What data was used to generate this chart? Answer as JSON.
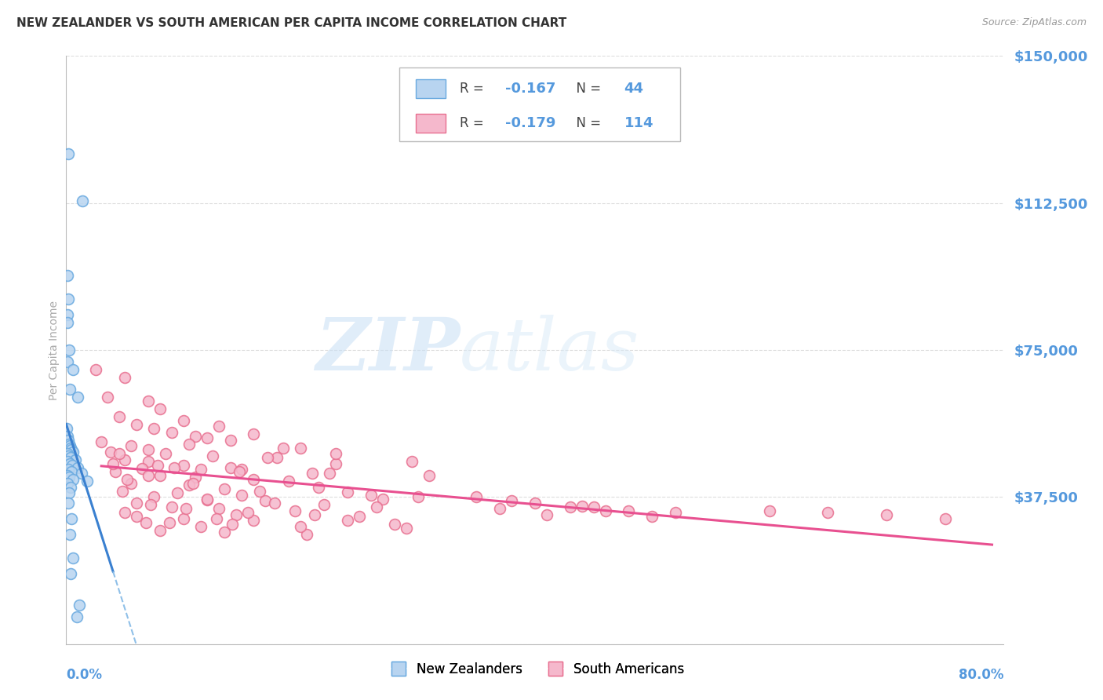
{
  "title": "NEW ZEALANDER VS SOUTH AMERICAN PER CAPITA INCOME CORRELATION CHART",
  "source": "Source: ZipAtlas.com",
  "ylabel": "Per Capita Income",
  "yticks": [
    0,
    37500,
    75000,
    112500,
    150000
  ],
  "ytick_labels": [
    "",
    "$37,500",
    "$75,000",
    "$112,500",
    "$150,000"
  ],
  "xmin": 0.0,
  "xmax": 80.0,
  "ymin": 0,
  "ymax": 150000,
  "nz_color": "#b8d4f0",
  "nz_edge_color": "#6aaae0",
  "sa_color": "#f5b8cc",
  "sa_edge_color": "#e87090",
  "trend_nz_color": "#3a80d0",
  "trend_sa_color": "#e85090",
  "trend_nz_dash_color": "#90c0e8",
  "nz_R": -0.167,
  "nz_N": 44,
  "sa_R": -0.179,
  "sa_N": 114,
  "watermark_zip": "ZIP",
  "watermark_atlas": "atlas",
  "background_color": "#ffffff",
  "grid_color": "#dddddd",
  "axis_label_color": "#5599dd",
  "title_color": "#333333",
  "source_color": "#999999",
  "ylabel_color": "#aaaaaa",
  "nz_points": [
    [
      0.15,
      125000
    ],
    [
      1.4,
      113000
    ],
    [
      0.12,
      94000
    ],
    [
      0.18,
      88000
    ],
    [
      0.1,
      84000
    ],
    [
      0.08,
      82000
    ],
    [
      0.22,
      75000
    ],
    [
      0.14,
      72000
    ],
    [
      0.55,
      70000
    ],
    [
      0.3,
      65000
    ],
    [
      1.0,
      63000
    ],
    [
      0.05,
      55000
    ],
    [
      0.12,
      53000
    ],
    [
      0.18,
      52000
    ],
    [
      0.25,
      51000
    ],
    [
      0.32,
      50500
    ],
    [
      0.4,
      50000
    ],
    [
      0.45,
      49500
    ],
    [
      0.6,
      49000
    ],
    [
      0.1,
      48500
    ],
    [
      0.2,
      48000
    ],
    [
      0.35,
      47500
    ],
    [
      0.8,
      47000
    ],
    [
      0.08,
      46500
    ],
    [
      0.28,
      46000
    ],
    [
      0.5,
      45500
    ],
    [
      1.0,
      45000
    ],
    [
      0.15,
      44500
    ],
    [
      0.42,
      44000
    ],
    [
      1.3,
      43500
    ],
    [
      0.08,
      43000
    ],
    [
      0.22,
      42500
    ],
    [
      0.6,
      42000
    ],
    [
      1.8,
      41500
    ],
    [
      0.12,
      41000
    ],
    [
      0.35,
      40000
    ],
    [
      0.25,
      38500
    ],
    [
      0.18,
      36000
    ],
    [
      0.45,
      32000
    ],
    [
      0.28,
      28000
    ],
    [
      0.6,
      22000
    ],
    [
      0.35,
      18000
    ],
    [
      1.1,
      10000
    ],
    [
      0.9,
      7000
    ]
  ],
  "sa_points": [
    [
      2.5,
      70000
    ],
    [
      5.0,
      68000
    ],
    [
      3.5,
      63000
    ],
    [
      7.0,
      62000
    ],
    [
      8.0,
      60000
    ],
    [
      4.5,
      58000
    ],
    [
      10.0,
      57000
    ],
    [
      6.0,
      56000
    ],
    [
      13.0,
      55500
    ],
    [
      7.5,
      55000
    ],
    [
      9.0,
      54000
    ],
    [
      16.0,
      53500
    ],
    [
      11.0,
      53000
    ],
    [
      12.0,
      52500
    ],
    [
      14.0,
      52000
    ],
    [
      3.0,
      51500
    ],
    [
      10.5,
      51000
    ],
    [
      5.5,
      50500
    ],
    [
      20.0,
      50000
    ],
    [
      7.0,
      49500
    ],
    [
      3.8,
      49000
    ],
    [
      8.5,
      48500
    ],
    [
      12.5,
      48000
    ],
    [
      18.0,
      47500
    ],
    [
      5.0,
      47000
    ],
    [
      7.0,
      46500
    ],
    [
      23.0,
      46000
    ],
    [
      10.0,
      45500
    ],
    [
      14.0,
      45000
    ],
    [
      6.5,
      44800
    ],
    [
      15.0,
      44500
    ],
    [
      4.2,
      44000
    ],
    [
      21.0,
      43500
    ],
    [
      8.0,
      43000
    ],
    [
      11.0,
      42500
    ],
    [
      16.0,
      42000
    ],
    [
      19.0,
      41500
    ],
    [
      5.5,
      41000
    ],
    [
      10.5,
      40500
    ],
    [
      21.5,
      40000
    ],
    [
      13.5,
      39500
    ],
    [
      4.8,
      39000
    ],
    [
      24.0,
      38800
    ],
    [
      9.5,
      38500
    ],
    [
      15.0,
      38000
    ],
    [
      7.5,
      37500
    ],
    [
      27.0,
      37000
    ],
    [
      12.0,
      36800
    ],
    [
      17.0,
      36500
    ],
    [
      6.0,
      36000
    ],
    [
      22.0,
      35500
    ],
    [
      9.0,
      35000
    ],
    [
      13.0,
      34500
    ],
    [
      19.5,
      34000
    ],
    [
      5.0,
      33500
    ],
    [
      14.5,
      33000
    ],
    [
      25.0,
      32500
    ],
    [
      10.0,
      32000
    ],
    [
      16.0,
      31500
    ],
    [
      6.8,
      31000
    ],
    [
      28.0,
      30500
    ],
    [
      11.5,
      30000
    ],
    [
      18.5,
      50000
    ],
    [
      23.0,
      48500
    ],
    [
      29.0,
      29500
    ],
    [
      8.0,
      29000
    ],
    [
      13.5,
      28500
    ],
    [
      20.5,
      28000
    ],
    [
      5.2,
      42000
    ],
    [
      10.8,
      41000
    ],
    [
      16.5,
      39000
    ],
    [
      26.0,
      38000
    ],
    [
      4.0,
      46000
    ],
    [
      9.2,
      45000
    ],
    [
      14.8,
      44000
    ],
    [
      7.0,
      43000
    ],
    [
      30.0,
      37500
    ],
    [
      12.0,
      37000
    ],
    [
      17.8,
      36000
    ],
    [
      7.2,
      35500
    ],
    [
      26.5,
      35000
    ],
    [
      10.2,
      34500
    ],
    [
      15.5,
      33500
    ],
    [
      21.2,
      33000
    ],
    [
      6.0,
      32500
    ],
    [
      12.8,
      32000
    ],
    [
      24.0,
      31500
    ],
    [
      8.8,
      31000
    ],
    [
      14.2,
      30500
    ],
    [
      20.0,
      30000
    ],
    [
      4.5,
      48500
    ],
    [
      17.2,
      47500
    ],
    [
      29.5,
      46500
    ],
    [
      7.8,
      45500
    ],
    [
      11.5,
      44500
    ],
    [
      22.5,
      43500
    ],
    [
      31.0,
      43000
    ],
    [
      45.0,
      35000
    ],
    [
      48.0,
      34000
    ],
    [
      37.0,
      34500
    ],
    [
      41.0,
      33000
    ],
    [
      50.0,
      32500
    ],
    [
      38.0,
      36500
    ],
    [
      43.0,
      35000
    ],
    [
      46.0,
      34000
    ],
    [
      52.0,
      33500
    ],
    [
      35.0,
      37500
    ],
    [
      40.0,
      36000
    ],
    [
      44.0,
      35200
    ],
    [
      60.0,
      34000
    ],
    [
      65.0,
      33500
    ],
    [
      70.0,
      33000
    ],
    [
      75.0,
      32000
    ]
  ]
}
